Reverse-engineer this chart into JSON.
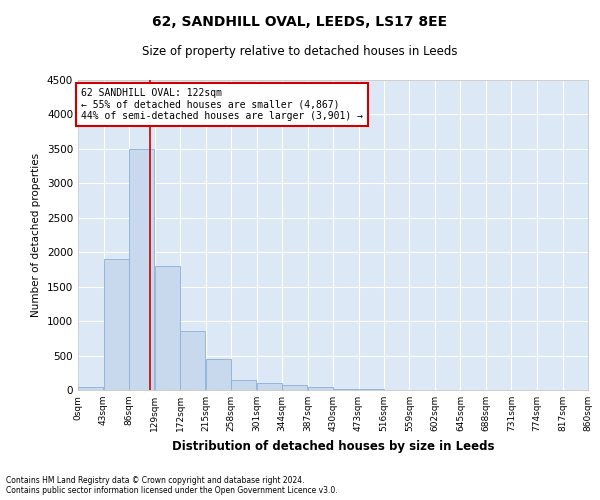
{
  "title": "62, SANDHILL OVAL, LEEDS, LS17 8EE",
  "subtitle": "Size of property relative to detached houses in Leeds",
  "xlabel": "Distribution of detached houses by size in Leeds",
  "ylabel": "Number of detached properties",
  "bin_edges": [
    0,
    43,
    86,
    129,
    172,
    215,
    258,
    301,
    344,
    387,
    430,
    473,
    516,
    559,
    602,
    645,
    688,
    731,
    774,
    817,
    860
  ],
  "bar_heights": [
    50,
    1900,
    3500,
    1800,
    850,
    450,
    150,
    100,
    75,
    50,
    20,
    10,
    5,
    3,
    2,
    1,
    1,
    0,
    0,
    0
  ],
  "bar_color": "#c8d9ee",
  "bar_edge_color": "#8aafd4",
  "red_line_x": 122,
  "ylim": [
    0,
    4500
  ],
  "yticks": [
    0,
    500,
    1000,
    1500,
    2000,
    2500,
    3000,
    3500,
    4000,
    4500
  ],
  "annotation_title": "62 SANDHILL OVAL: 122sqm",
  "annotation_line1": "← 55% of detached houses are smaller (4,867)",
  "annotation_line2": "44% of semi-detached houses are larger (3,901) →",
  "annotation_box_color": "#ffffff",
  "annotation_box_edge_color": "#cc0000",
  "footer_line1": "Contains HM Land Registry data © Crown copyright and database right 2024.",
  "footer_line2": "Contains public sector information licensed under the Open Government Licence v3.0.",
  "background_color": "#ffffff",
  "plot_bg_color": "#dce8f5",
  "grid_color": "#ffffff",
  "tick_labels": [
    "0sqm",
    "43sqm",
    "86sqm",
    "129sqm",
    "172sqm",
    "215sqm",
    "258sqm",
    "301sqm",
    "344sqm",
    "387sqm",
    "430sqm",
    "473sqm",
    "516sqm",
    "559sqm",
    "602sqm",
    "645sqm",
    "688sqm",
    "731sqm",
    "774sqm",
    "817sqm",
    "860sqm"
  ]
}
